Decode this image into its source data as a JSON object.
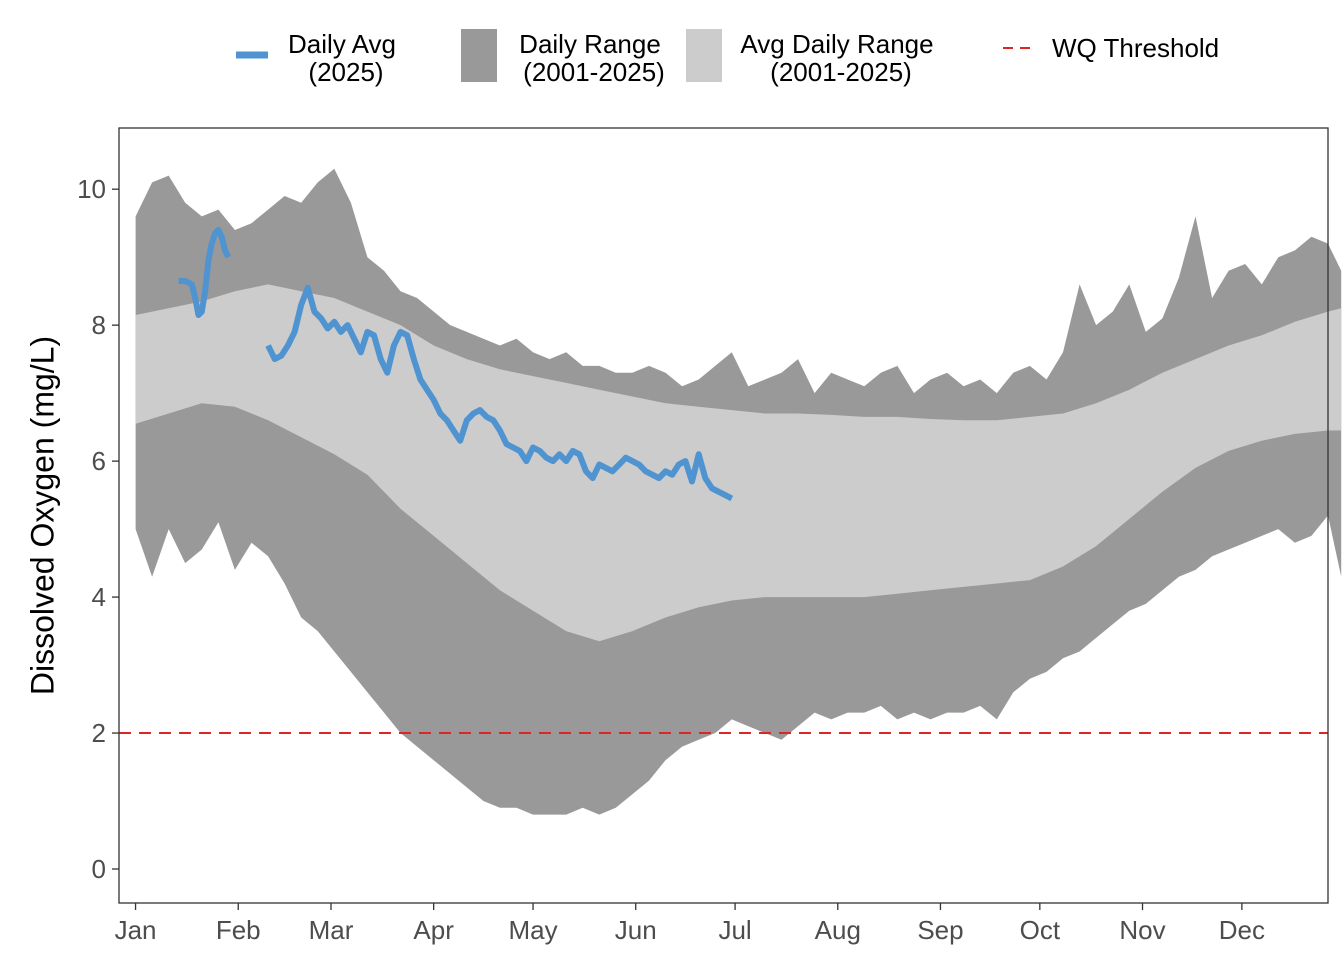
{
  "chart_data": {
    "type": "line",
    "title": "",
    "xlabel": "",
    "ylabel": "Dissolved Oxygen (mg/L)",
    "ylim": [
      -0.5,
      10.9
    ],
    "xlim": [
      -5,
      360
    ],
    "y_ticks": [
      "0",
      "2",
      "4",
      "6",
      "8",
      "10"
    ],
    "x_tick_labels": [
      "Jan",
      "Feb",
      "Mar",
      "Apr",
      "May",
      "Jun",
      "Jul",
      "Aug",
      "Sep",
      "Oct",
      "Nov",
      "Dec"
    ],
    "x_tick_days": [
      0,
      31,
      59,
      90,
      120,
      151,
      181,
      212,
      243,
      273,
      304,
      334
    ],
    "grid": false,
    "legend_position": "top",
    "legend": [
      {
        "key": "daily_avg",
        "line1": "Daily Avg",
        "line2": "(2025)",
        "color": "#4f93d0"
      },
      {
        "key": "daily_range",
        "line1": "Daily Range",
        "line2": "(2001-2025)",
        "color": "#999999"
      },
      {
        "key": "avg_range",
        "line1": "Avg Daily Range",
        "line2": "(2001-2025)",
        "color": "#cccccc"
      },
      {
        "key": "threshold",
        "line1": "WQ Threshold",
        "line2": "",
        "color": "#dc2626"
      }
    ],
    "threshold": {
      "name": "WQ Threshold",
      "value": 2,
      "color": "#dc2626"
    },
    "series": [
      {
        "name": "Daily Range (2001-2025)",
        "kind": "band",
        "color": "#999999",
        "x": [
          0,
          5,
          10,
          15,
          20,
          25,
          30,
          35,
          40,
          45,
          50,
          55,
          60,
          65,
          70,
          75,
          80,
          85,
          90,
          95,
          100,
          105,
          110,
          115,
          120,
          125,
          130,
          135,
          140,
          145,
          150,
          155,
          160,
          165,
          170,
          175,
          180,
          185,
          190,
          195,
          200,
          205,
          210,
          215,
          220,
          225,
          230,
          235,
          240,
          245,
          250,
          255,
          260,
          265,
          270,
          275,
          280,
          285,
          290,
          295,
          300,
          305,
          310,
          315,
          320,
          325,
          330,
          335,
          340,
          345,
          350,
          355,
          360,
          364
        ],
        "upper": [
          9.6,
          10.1,
          10.2,
          9.8,
          9.6,
          9.7,
          9.4,
          9.5,
          9.7,
          9.9,
          9.8,
          10.1,
          10.3,
          9.8,
          9.0,
          8.8,
          8.5,
          8.4,
          8.2,
          8.0,
          7.9,
          7.8,
          7.7,
          7.8,
          7.6,
          7.5,
          7.6,
          7.4,
          7.4,
          7.3,
          7.3,
          7.4,
          7.3,
          7.1,
          7.2,
          7.4,
          7.6,
          7.1,
          7.2,
          7.3,
          7.5,
          7.0,
          7.3,
          7.2,
          7.1,
          7.3,
          7.4,
          7.0,
          7.2,
          7.3,
          7.1,
          7.2,
          7.0,
          7.3,
          7.4,
          7.2,
          7.6,
          8.6,
          8.0,
          8.2,
          8.6,
          7.9,
          8.1,
          8.7,
          9.6,
          8.4,
          8.8,
          8.9,
          8.6,
          9.0,
          9.1,
          9.3,
          9.2,
          8.8
        ],
        "lower": [
          5.0,
          4.3,
          5.0,
          4.5,
          4.7,
          5.1,
          4.4,
          4.8,
          4.6,
          4.2,
          3.7,
          3.5,
          3.2,
          2.9,
          2.6,
          2.3,
          2.0,
          1.8,
          1.6,
          1.4,
          1.2,
          1.0,
          0.9,
          0.9,
          0.8,
          0.8,
          0.8,
          0.9,
          0.8,
          0.9,
          1.1,
          1.3,
          1.6,
          1.8,
          1.9,
          2.0,
          2.2,
          2.1,
          2.0,
          1.9,
          2.1,
          2.3,
          2.2,
          2.3,
          2.3,
          2.4,
          2.2,
          2.3,
          2.2,
          2.3,
          2.3,
          2.4,
          2.2,
          2.6,
          2.8,
          2.9,
          3.1,
          3.2,
          3.4,
          3.6,
          3.8,
          3.9,
          4.1,
          4.3,
          4.4,
          4.6,
          4.7,
          4.8,
          4.9,
          5.0,
          4.8,
          4.9,
          5.2,
          4.3
        ]
      },
      {
        "name": "Avg Daily Range (2001-2025)",
        "kind": "band",
        "color": "#cccccc",
        "x": [
          0,
          10,
          20,
          30,
          40,
          50,
          60,
          70,
          80,
          90,
          100,
          110,
          120,
          130,
          140,
          150,
          160,
          170,
          180,
          190,
          200,
          210,
          220,
          230,
          240,
          250,
          260,
          270,
          280,
          290,
          300,
          310,
          320,
          330,
          340,
          350,
          360,
          364
        ],
        "upper": [
          8.15,
          8.25,
          8.35,
          8.5,
          8.6,
          8.5,
          8.4,
          8.2,
          8.0,
          7.7,
          7.5,
          7.35,
          7.25,
          7.15,
          7.05,
          6.95,
          6.85,
          6.8,
          6.75,
          6.7,
          6.7,
          6.68,
          6.65,
          6.65,
          6.62,
          6.6,
          6.6,
          6.65,
          6.7,
          6.85,
          7.05,
          7.3,
          7.5,
          7.7,
          7.85,
          8.05,
          8.2,
          8.25
        ],
        "lower": [
          6.55,
          6.7,
          6.85,
          6.8,
          6.6,
          6.35,
          6.1,
          5.8,
          5.3,
          4.9,
          4.5,
          4.1,
          3.8,
          3.5,
          3.35,
          3.5,
          3.7,
          3.85,
          3.95,
          4.0,
          4.0,
          4.0,
          4.0,
          4.05,
          4.1,
          4.15,
          4.2,
          4.25,
          4.45,
          4.75,
          5.15,
          5.55,
          5.9,
          6.15,
          6.3,
          6.4,
          6.45,
          6.45
        ]
      },
      {
        "name": "Daily Avg (2025)",
        "kind": "line",
        "color": "#4f93d0",
        "segments": [
          {
            "x": [
              13,
              15,
              17,
              18,
              19,
              20,
              21,
              22,
              23,
              24,
              25,
              26,
              27,
              28
            ],
            "y": [
              8.65,
              8.65,
              8.6,
              8.4,
              8.15,
              8.2,
              8.5,
              8.95,
              9.2,
              9.35,
              9.4,
              9.3,
              9.1,
              9.0
            ]
          },
          {
            "x": [
              40,
              42,
              44,
              46,
              48,
              50,
              52,
              54,
              56,
              58,
              60,
              62,
              64,
              66,
              68,
              70,
              72,
              74,
              76,
              78,
              80,
              82,
              84,
              86,
              88,
              90,
              92,
              94,
              96,
              98,
              100,
              102,
              104,
              106,
              108,
              110,
              112,
              114,
              116,
              118,
              120,
              122,
              124,
              126,
              128,
              130,
              132,
              134,
              136,
              138,
              140,
              142,
              144,
              146,
              148,
              150,
              152,
              154,
              156,
              158,
              160,
              162,
              164,
              166,
              168,
              170,
              172,
              174,
              176,
              178,
              180
            ],
            "y": [
              7.7,
              7.5,
              7.55,
              7.7,
              7.9,
              8.3,
              8.55,
              8.2,
              8.1,
              7.95,
              8.05,
              7.9,
              8.0,
              7.8,
              7.6,
              7.9,
              7.85,
              7.5,
              7.3,
              7.7,
              7.9,
              7.85,
              7.5,
              7.2,
              7.05,
              6.9,
              6.7,
              6.6,
              6.45,
              6.3,
              6.6,
              6.7,
              6.75,
              6.65,
              6.6,
              6.45,
              6.25,
              6.2,
              6.15,
              6.0,
              6.2,
              6.15,
              6.05,
              6.0,
              6.1,
              6.0,
              6.15,
              6.1,
              5.85,
              5.75,
              5.95,
              5.9,
              5.85,
              5.95,
              6.05,
              6.0,
              5.95,
              5.85,
              5.8,
              5.75,
              5.85,
              5.8,
              5.95,
              6.0,
              5.7,
              6.1,
              5.75,
              5.6,
              5.55,
              5.5,
              5.45
            ]
          }
        ]
      }
    ]
  }
}
